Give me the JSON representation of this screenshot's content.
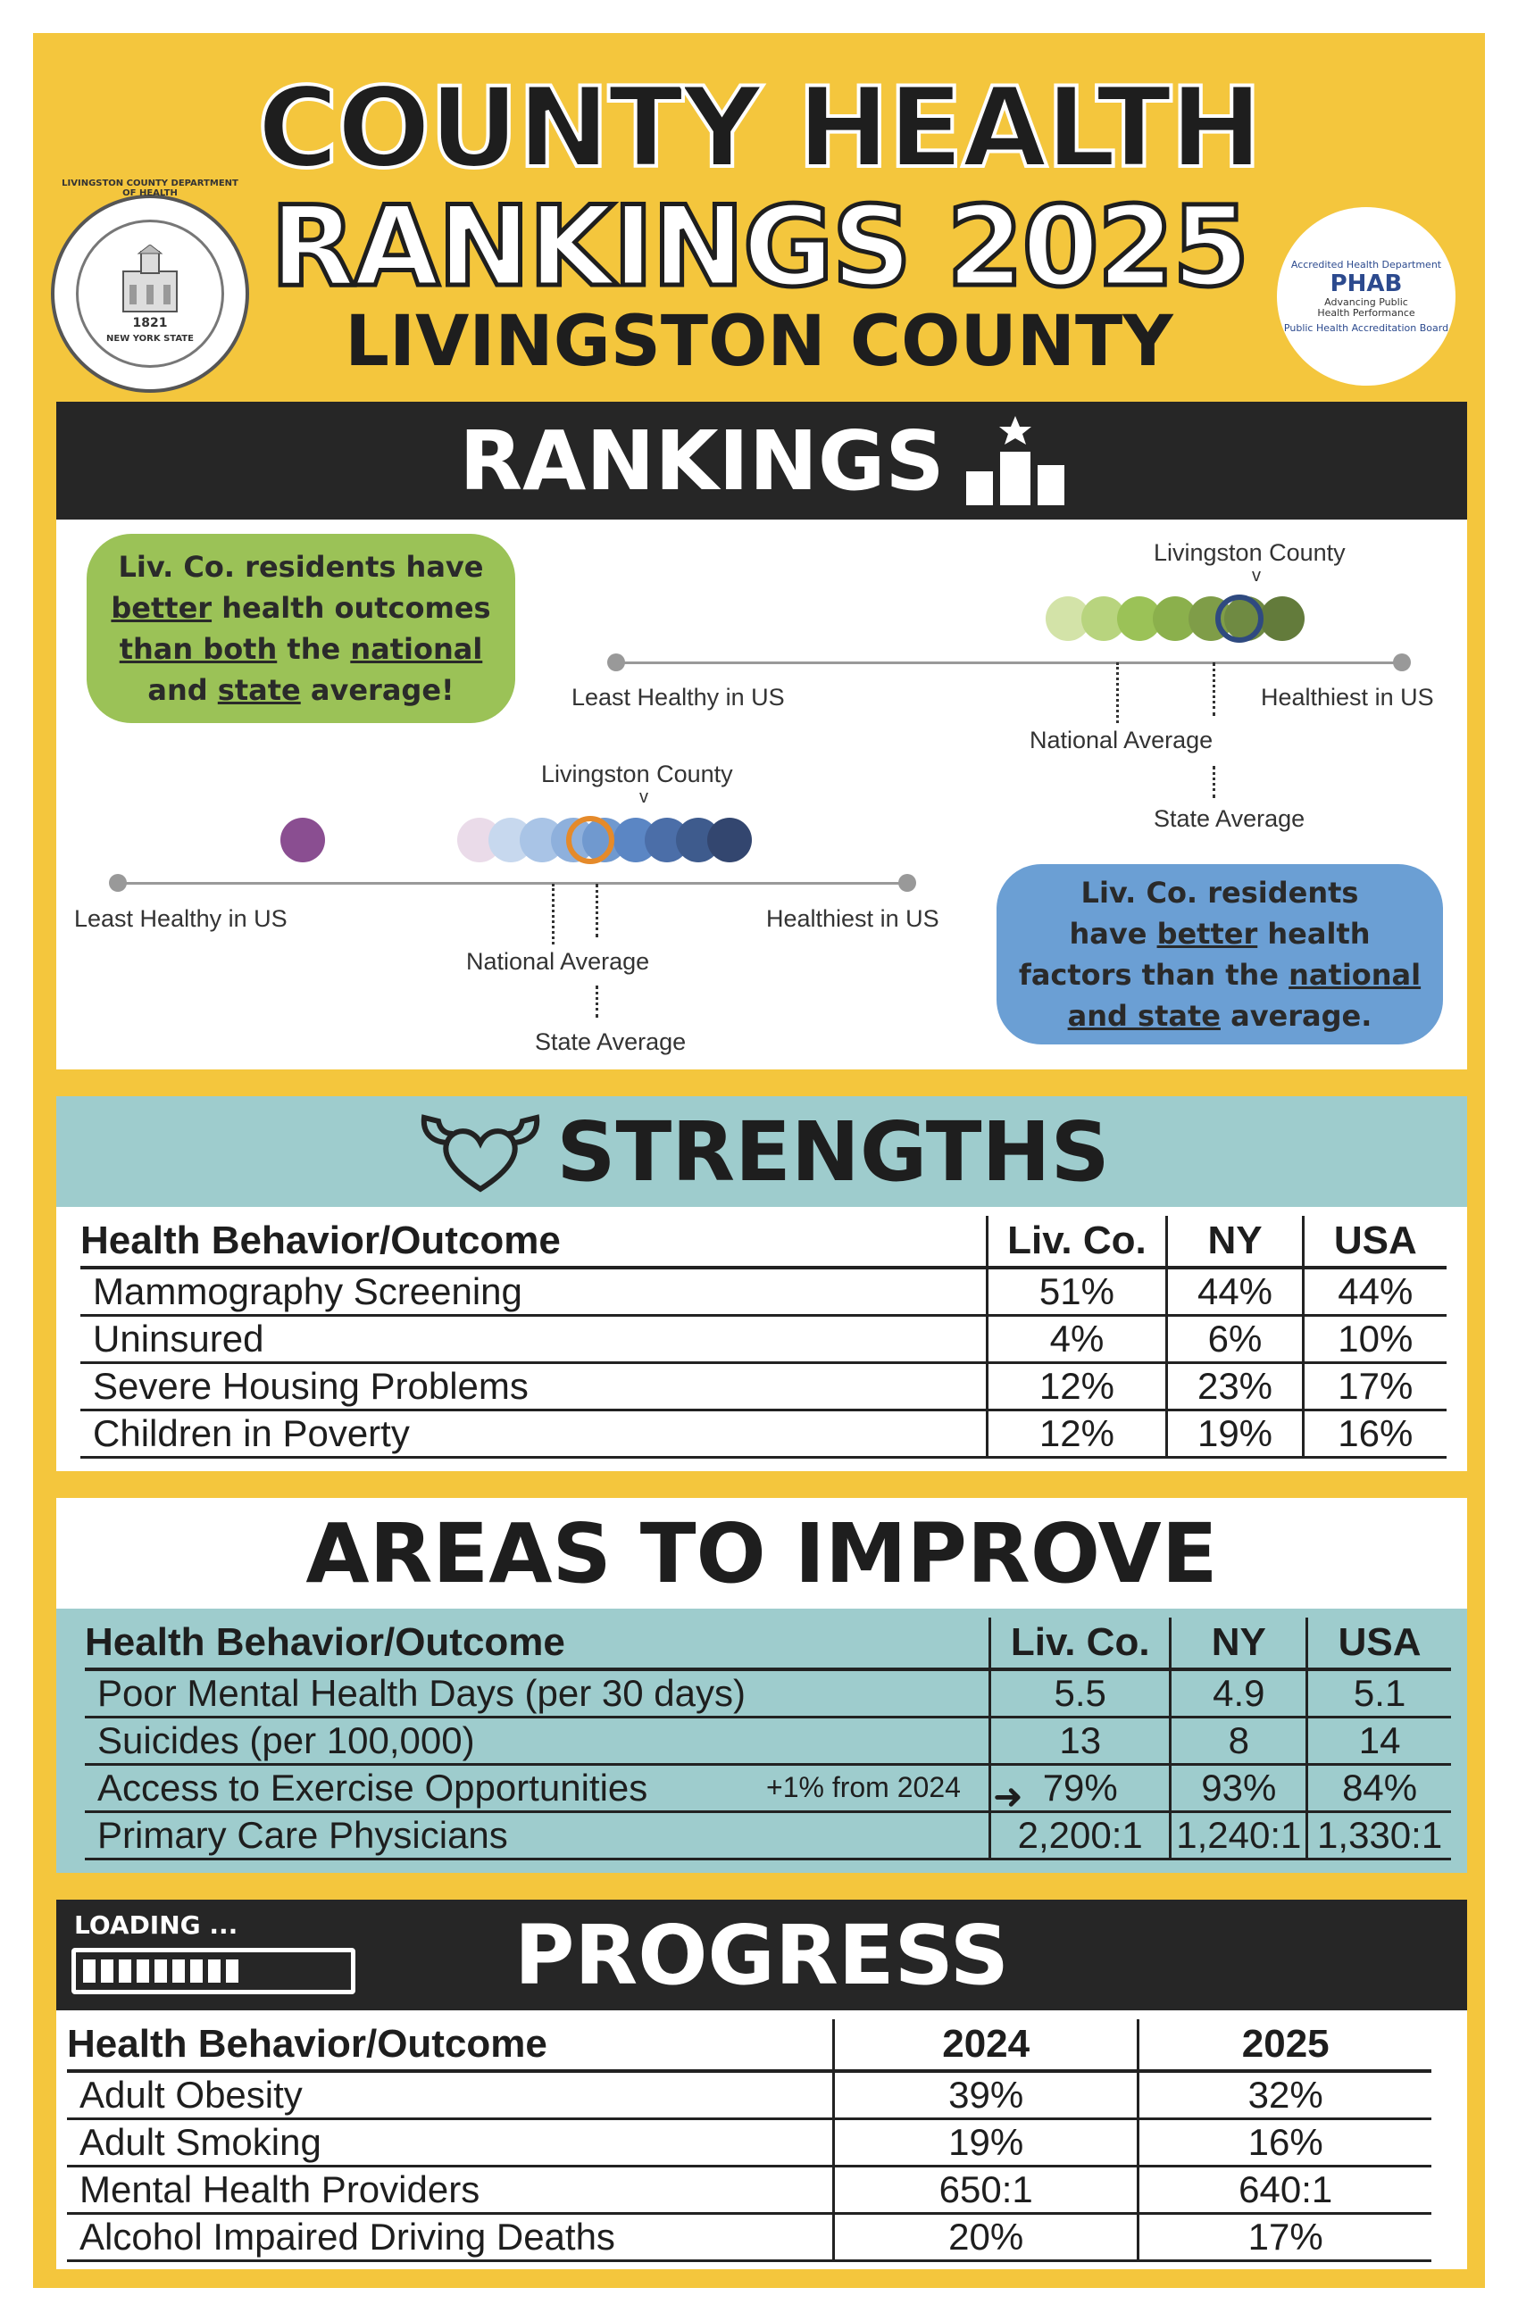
{
  "header": {
    "line1": "COUNTY HEALTH",
    "line2": "RANKINGS 2025",
    "line3": "LIVINGSTON COUNTY"
  },
  "seals": {
    "left": {
      "ring_text": "LIVINGSTON COUNTY DEPARTMENT OF HEALTH",
      "year": "1821",
      "bottom_text": "NEW YORK STATE"
    },
    "right": {
      "ring_top": "Accredited Health Department",
      "name": "PHAB",
      "sub": "Advancing Public Health Performance",
      "ring_bottom": "Public Health Accreditation Board"
    }
  },
  "rankings": {
    "title": "RANKINGS",
    "icon": "podium-star-icon",
    "outcomes_callout": {
      "p1": "Liv. Co. residents have",
      "p2": "better",
      "p3": " health outcomes",
      "p4": "than both",
      "p5": " the ",
      "p6": "national",
      "p7": "and ",
      "p8": "state",
      "p9": " average!"
    },
    "factors_callout": {
      "p1": "Liv. Co. residents",
      "p2": "have ",
      "p3": "better",
      "p4": " health",
      "p5": "factors than the ",
      "p6": "national",
      "p7": "and state",
      "p8": " average."
    },
    "scale1": {
      "county_label": "Livingston County",
      "marker": "v",
      "left_label": "Least Healthy in US",
      "right_label": "Healthiest in US",
      "national_label": "National Average",
      "state_label": "State Average",
      "colors": [
        "#d3e3a8",
        "#b8d47e",
        "#9bc257",
        "#8bb04c",
        "#7f9d48",
        "#6f8a42",
        "#637b3b"
      ],
      "county_ring_color": "#2f4a80"
    },
    "scale2": {
      "county_label": "Livingston County",
      "marker": "v",
      "left_label": "Least Healthy in US",
      "right_label": "Healthiest in US",
      "national_label": "National Average",
      "state_label": "State Average",
      "outlier_color": "#8a4e91",
      "colors": [
        "#eadbe9",
        "#c7d8ee",
        "#a9c4e6",
        "#8eb0dc",
        "#7099cf",
        "#5b86c4",
        "#4b6ea8",
        "#3e5b8d",
        "#33466f"
      ],
      "county_ring_color": "#e58a2a"
    }
  },
  "strengths": {
    "title": "STRENGTHS",
    "icon": "strong-heart-icon",
    "columns": [
      "Health Behavior/Outcome",
      "Liv. Co.",
      "NY",
      "USA"
    ],
    "rows": [
      [
        "Mammography Screening",
        "51%",
        "44%",
        "44%"
      ],
      [
        "Uninsured",
        "4%",
        "6%",
        "10%"
      ],
      [
        "Severe Housing Problems",
        "12%",
        "23%",
        "17%"
      ],
      [
        "Children in Poverty",
        "12%",
        "19%",
        "16%"
      ]
    ]
  },
  "improve": {
    "title": "AREAS TO IMPROVE",
    "columns": [
      "Health Behavior/Outcome",
      "Liv. Co.",
      "NY",
      "USA"
    ],
    "rows": [
      [
        "Poor Mental Health Days (per 30 days)",
        "5.5",
        "4.9",
        "5.1"
      ],
      [
        "Suicides (per 100,000)",
        "13",
        "8",
        "14"
      ],
      [
        "Access to Exercise Opportunities",
        "79%",
        "93%",
        "84%"
      ],
      [
        "Primary Care Physicians",
        "2,200:1",
        "1,240:1",
        "1,330:1"
      ]
    ],
    "note": "+1% from 2024"
  },
  "progress": {
    "title": "PROGRESS",
    "loading_label": "LOADING ...",
    "loading_fraction": 0.6,
    "columns": [
      "Health Behavior/Outcome",
      "2024",
      "2025"
    ],
    "rows": [
      [
        "Adult Obesity",
        "39%",
        "32%"
      ],
      [
        "Adult Smoking",
        "19%",
        "16%"
      ],
      [
        "Mental Health Providers",
        "650:1",
        "640:1"
      ],
      [
        "Alcohol Impaired Driving Deaths",
        "20%",
        "17%"
      ]
    ]
  },
  "colors": {
    "frame": "#f4c63d",
    "dark": "#262626",
    "teal": "#9ecccd",
    "green_pill": "#9bc257",
    "blue_pill": "#6b9fd4"
  }
}
